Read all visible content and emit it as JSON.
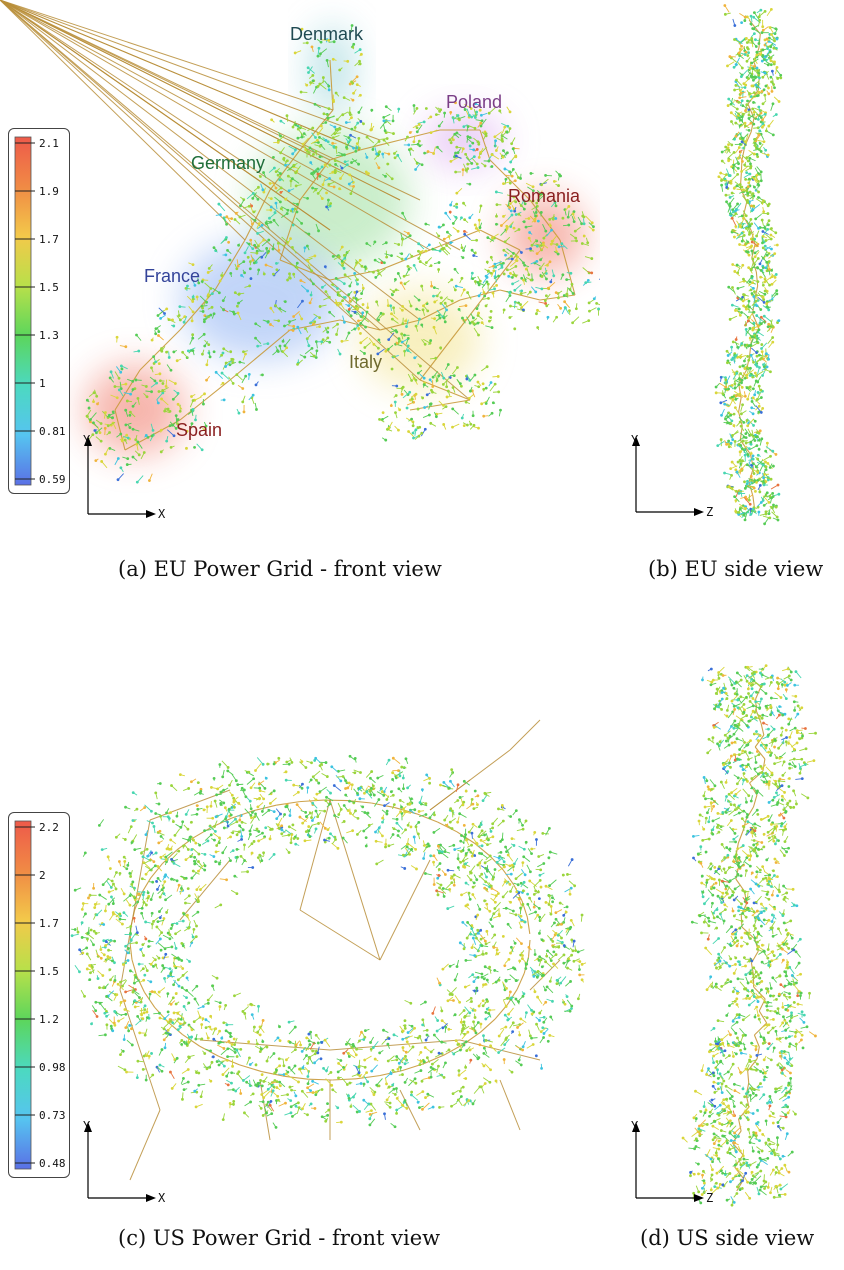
{
  "panels": {
    "a": {
      "caption": "(a) EU Power Grid - front view",
      "colorbar_ticks": [
        "2.1",
        "1.9",
        "1.7",
        "1.5",
        "1.3",
        "1",
        "0.81",
        "0.59"
      ],
      "axis_y": "Y",
      "axis_x": "X",
      "regions": [
        {
          "name": "Denmark",
          "color": "#1f4a52",
          "glow": "#8ccfd6"
        },
        {
          "name": "Poland",
          "color": "#7a3d86",
          "glow": "#d9a6ee"
        },
        {
          "name": "Germany",
          "color": "#1f6e3a",
          "glow": "#9fe0a0"
        },
        {
          "name": "Romania",
          "color": "#8a2020",
          "glow": "#f07a6a"
        },
        {
          "name": "France",
          "color": "#34449a",
          "glow": "#8fb2f3"
        },
        {
          "name": "Italy",
          "color": "#6f6a2e",
          "glow": "#f3e38c"
        },
        {
          "name": "Spain",
          "color": "#8a2020",
          "glow": "#f07a6a"
        }
      ]
    },
    "b": {
      "caption": "(b) EU side view",
      "axis_y": "Y",
      "axis_z": "Z"
    },
    "c": {
      "caption": "(c) US Power Grid - front view",
      "colorbar_ticks": [
        "2.2",
        "2",
        "1.7",
        "1.5",
        "1.2",
        "0.98",
        "0.73",
        "0.48"
      ],
      "axis_y": "Y",
      "axis_x": "X"
    },
    "d": {
      "caption": "(d) US side view",
      "axis_y": "Y",
      "axis_z": "Z"
    }
  }
}
